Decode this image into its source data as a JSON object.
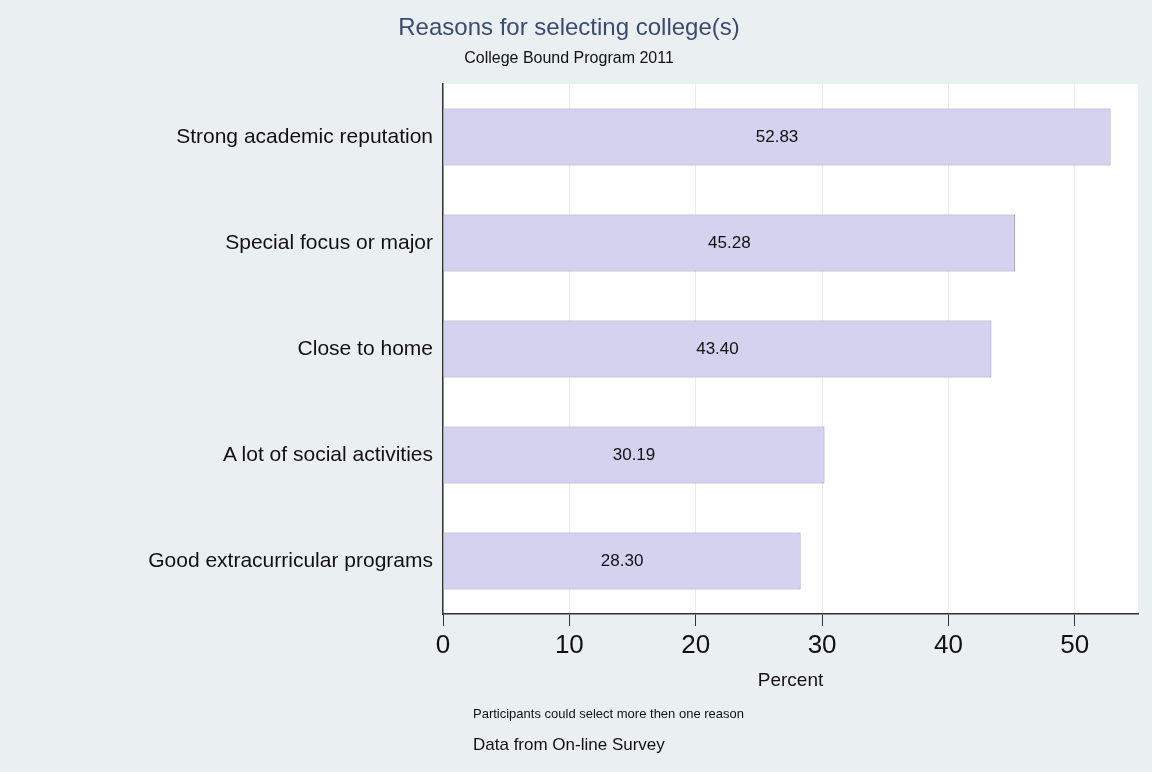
{
  "chart_data": {
    "type": "bar",
    "orientation": "horizontal",
    "title": "Reasons for selecting college(s)",
    "subtitle": "College Bound Program 2011",
    "xlabel": "Percent",
    "categories": [
      "Strong academic reputation",
      "Special focus or major",
      "Close to home",
      "A lot of social activities",
      "Good extracurricular programs"
    ],
    "values": [
      52.83,
      45.28,
      43.4,
      30.19,
      28.3
    ],
    "value_labels": [
      "52.83",
      "45.28",
      "43.40",
      "30.19",
      "28.30"
    ],
    "color": "#d4d2ee",
    "xlim": [
      0,
      55
    ],
    "xticks": [
      0,
      10,
      20,
      30,
      40,
      50
    ],
    "grid": "x",
    "legend": false,
    "annotations": [
      "Participants could select more then one reason",
      "Data from On-line Survey"
    ]
  }
}
